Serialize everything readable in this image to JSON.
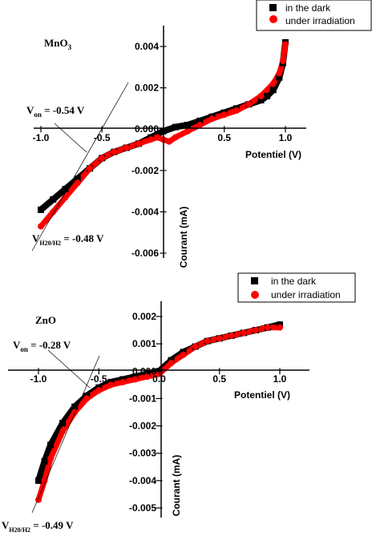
{
  "chart_data": [
    {
      "type": "line",
      "title": "MnO3",
      "title_main": "MnO",
      "title_sub": "3",
      "xlabel": "Potentiel (V)",
      "ylabel": "Courant (mA)",
      "xlim": [
        -1.0,
        1.0
      ],
      "ylim": [
        -0.006,
        0.004
      ],
      "x_ticks": [
        "-1.0",
        "-0.5",
        "0.5",
        "1.0"
      ],
      "y_ticks": [
        "0.004",
        "0.002",
        "0.000",
        "-0.002",
        "-0.004",
        "-0.006"
      ],
      "legend": "top-right",
      "grid": false,
      "series": [
        {
          "name": "in the dark",
          "color": "#000000",
          "marker": "square",
          "x": [
            -1.0,
            -0.9,
            -0.8,
            -0.7,
            -0.6,
            -0.5,
            -0.4,
            -0.3,
            -0.2,
            -0.1,
            0.0,
            0.1,
            0.2,
            0.3,
            0.4,
            0.5,
            0.6,
            0.7,
            0.8,
            0.85,
            0.9,
            0.95,
            0.98,
            1.0
          ],
          "values": [
            -0.0039,
            -0.0034,
            -0.0029,
            -0.0024,
            -0.0019,
            -0.0014,
            -0.0011,
            -0.0009,
            -0.0007,
            -0.0004,
            -0.0001,
            0.0001,
            0.0002,
            0.0004,
            0.0006,
            0.0008,
            0.001,
            0.0012,
            0.0014,
            0.0016,
            0.0019,
            0.0025,
            0.0032,
            0.0042
          ]
        },
        {
          "name": "under irradiation",
          "color": "#ff0000",
          "marker": "circle",
          "x": [
            -1.0,
            -0.9,
            -0.8,
            -0.7,
            -0.6,
            -0.5,
            -0.4,
            -0.3,
            -0.2,
            -0.1,
            -0.05,
            0.0,
            0.05,
            0.1,
            0.2,
            0.3,
            0.4,
            0.5,
            0.6,
            0.7,
            0.8,
            0.9,
            0.95,
            0.98,
            1.0
          ],
          "values": [
            -0.0047,
            -0.004,
            -0.0033,
            -0.0026,
            -0.0019,
            -0.0014,
            -0.0011,
            -0.0009,
            -0.0007,
            -0.0005,
            -0.0004,
            -0.0005,
            -0.0006,
            -0.0004,
            -0.0001,
            0.0002,
            0.0005,
            0.0007,
            0.0009,
            0.0012,
            0.0016,
            0.0022,
            0.0027,
            0.0033,
            0.0041
          ]
        }
      ],
      "annotations": [
        {
          "label": "V",
          "sub": "on",
          "value_text": " = -0.54 V"
        },
        {
          "label": "V",
          "sub": "H20/H2",
          "value_text": " = -0.48 V"
        }
      ]
    },
    {
      "type": "line",
      "title": "ZnO",
      "xlabel": "Potentiel (V)",
      "ylabel": "Courant (mA)",
      "xlim": [
        -1.0,
        1.0
      ],
      "ylim": [
        -0.005,
        0.002
      ],
      "x_ticks": [
        "-1.0",
        "-0.5",
        "0.0",
        "0.5",
        "1.0"
      ],
      "y_ticks": [
        "0.002",
        "0.001",
        "0.000",
        "-0.001",
        "-0.002",
        "-0.003",
        "-0.004",
        "-0.005"
      ],
      "legend": "top-right",
      "grid": false,
      "series": [
        {
          "name": "in the dark",
          "color": "#000000",
          "marker": "square",
          "x": [
            -1.0,
            -0.95,
            -0.9,
            -0.8,
            -0.7,
            -0.6,
            -0.5,
            -0.4,
            -0.3,
            -0.2,
            -0.1,
            0.0,
            0.1,
            0.2,
            0.3,
            0.4,
            0.5,
            0.6,
            0.7,
            0.8,
            0.9,
            1.0
          ],
          "values": [
            -0.004,
            -0.0033,
            -0.0027,
            -0.0019,
            -0.0013,
            -0.0009,
            -0.0006,
            -0.0004,
            -0.0003,
            -0.0002,
            -0.0001,
            0.0,
            0.0004,
            0.0007,
            0.0009,
            0.0011,
            0.0012,
            0.0013,
            0.0014,
            0.0015,
            0.0016,
            0.0017
          ]
        },
        {
          "name": "under irradiation",
          "color": "#ff0000",
          "marker": "circle",
          "x": [
            -1.0,
            -0.95,
            -0.9,
            -0.8,
            -0.7,
            -0.6,
            -0.5,
            -0.4,
            -0.3,
            -0.2,
            -0.1,
            0.0,
            0.1,
            0.2,
            0.3,
            0.4,
            0.5,
            0.6,
            0.7,
            0.8,
            0.9,
            1.0
          ],
          "values": [
            -0.0047,
            -0.004,
            -0.0032,
            -0.0022,
            -0.0015,
            -0.001,
            -0.0007,
            -0.0005,
            -0.0004,
            -0.0003,
            -0.0002,
            -0.0001,
            0.0003,
            0.0006,
            0.0009,
            0.0011,
            0.0012,
            0.0013,
            0.0014,
            0.0015,
            0.0016,
            0.0016
          ]
        }
      ],
      "annotations": [
        {
          "label": "V",
          "sub": "on",
          "value_text": " = -0.28 V"
        },
        {
          "label": "V",
          "sub": "H20/H2",
          "value_text": " = -0.49 V"
        }
      ]
    }
  ]
}
